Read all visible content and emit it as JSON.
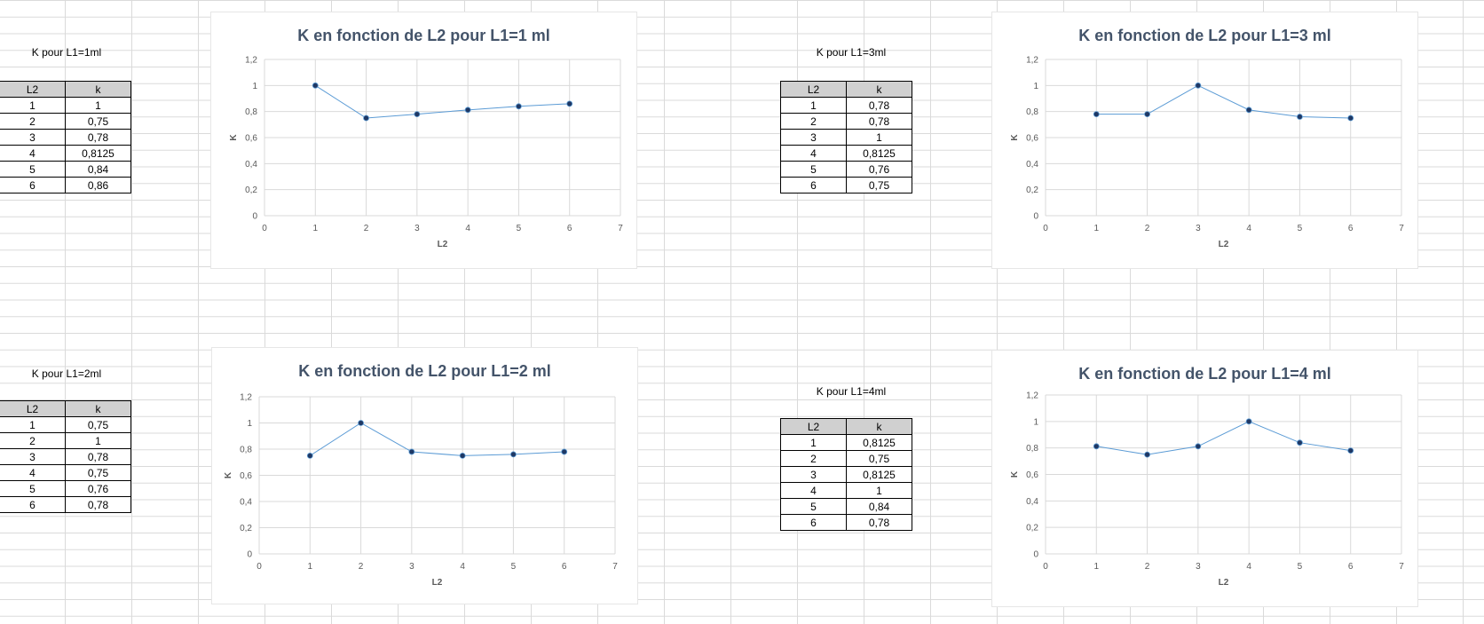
{
  "colors": {
    "line": "#5b9bd5",
    "marker": "#1f3864",
    "grid": "#d9d9d9",
    "title": "#44546a",
    "header_bg": "#d0d0d0"
  },
  "blocks": [
    {
      "caption": "K pour L1=1ml",
      "table": {
        "headers": [
          "L2",
          "k"
        ],
        "rows": [
          [
            "1",
            "1"
          ],
          [
            "2",
            "0,75"
          ],
          [
            "3",
            "0,78"
          ],
          [
            "4",
            "0,8125"
          ],
          [
            "5",
            "0,84"
          ],
          [
            "6",
            "0,86"
          ]
        ]
      }
    },
    {
      "caption": "K pour L1=3ml",
      "table": {
        "headers": [
          "L2",
          "k"
        ],
        "rows": [
          [
            "1",
            "0,78"
          ],
          [
            "2",
            "0,78"
          ],
          [
            "3",
            "1"
          ],
          [
            "4",
            "0,8125"
          ],
          [
            "5",
            "0,76"
          ],
          [
            "6",
            "0,75"
          ]
        ]
      }
    },
    {
      "caption": "K pour L1=2ml",
      "table": {
        "headers": [
          "L2",
          "k"
        ],
        "rows": [
          [
            "1",
            "0,75"
          ],
          [
            "2",
            "1"
          ],
          [
            "3",
            "0,78"
          ],
          [
            "4",
            "0,75"
          ],
          [
            "5",
            "0,76"
          ],
          [
            "6",
            "0,78"
          ]
        ]
      }
    },
    {
      "caption": "K pour L1=4ml",
      "table": {
        "headers": [
          "L2",
          "k"
        ],
        "rows": [
          [
            "1",
            "0,8125"
          ],
          [
            "2",
            "0,75"
          ],
          [
            "3",
            "0,8125"
          ],
          [
            "4",
            "1"
          ],
          [
            "5",
            "0,84"
          ],
          [
            "6",
            "0,78"
          ]
        ]
      }
    }
  ],
  "chart_data": [
    {
      "type": "line",
      "title": "K en fonction de L2 pour L1=1 ml",
      "xlabel": "L2",
      "ylabel": "K",
      "x": [
        1,
        2,
        3,
        4,
        5,
        6
      ],
      "series": [
        {
          "values": [
            1,
            0.75,
            0.78,
            0.8125,
            0.84,
            0.86
          ]
        }
      ],
      "xlim": [
        0,
        7
      ],
      "ylim": [
        0,
        1.2
      ],
      "x_ticks": [
        "0",
        "1",
        "2",
        "3",
        "4",
        "5",
        "6",
        "7"
      ],
      "y_ticks": [
        "0",
        "0,2",
        "0,4",
        "0,6",
        "0,8",
        "1",
        "1,2"
      ],
      "grid": true
    },
    {
      "type": "line",
      "title": "K en fonction de L2 pour L1=3 ml",
      "xlabel": "L2",
      "ylabel": "K",
      "x": [
        1,
        2,
        3,
        4,
        5,
        6
      ],
      "series": [
        {
          "values": [
            0.78,
            0.78,
            1,
            0.8125,
            0.76,
            0.75
          ]
        }
      ],
      "xlim": [
        0,
        7
      ],
      "ylim": [
        0,
        1.2
      ],
      "x_ticks": [
        "0",
        "1",
        "2",
        "3",
        "4",
        "5",
        "6",
        "7"
      ],
      "y_ticks": [
        "0",
        "0,2",
        "0,4",
        "0,6",
        "0,8",
        "1",
        "1,2"
      ],
      "grid": true
    },
    {
      "type": "line",
      "title": "K en fonction de L2 pour L1=2 ml",
      "xlabel": "L2",
      "ylabel": "K",
      "x": [
        1,
        2,
        3,
        4,
        5,
        6
      ],
      "series": [
        {
          "values": [
            0.75,
            1,
            0.78,
            0.75,
            0.76,
            0.78
          ]
        }
      ],
      "xlim": [
        0,
        7
      ],
      "ylim": [
        0,
        1.2
      ],
      "x_ticks": [
        "0",
        "1",
        "2",
        "3",
        "4",
        "5",
        "6",
        "7"
      ],
      "y_ticks": [
        "0",
        "0,2",
        "0,4",
        "0,6",
        "0,8",
        "1",
        "1,2"
      ],
      "grid": true
    },
    {
      "type": "line",
      "title": "K en fonction de L2 pour L1=4 ml",
      "xlabel": "L2",
      "ylabel": "K",
      "x": [
        1,
        2,
        3,
        4,
        5,
        6
      ],
      "series": [
        {
          "values": [
            0.8125,
            0.75,
            0.8125,
            1,
            0.84,
            0.78
          ]
        }
      ],
      "xlim": [
        0,
        7
      ],
      "ylim": [
        0,
        1.2
      ],
      "x_ticks": [
        "0",
        "1",
        "2",
        "3",
        "4",
        "5",
        "6",
        "7"
      ],
      "y_ticks": [
        "0",
        "0,2",
        "0,4",
        "0,6",
        "0,8",
        "1",
        "1,2"
      ],
      "grid": true
    }
  ]
}
